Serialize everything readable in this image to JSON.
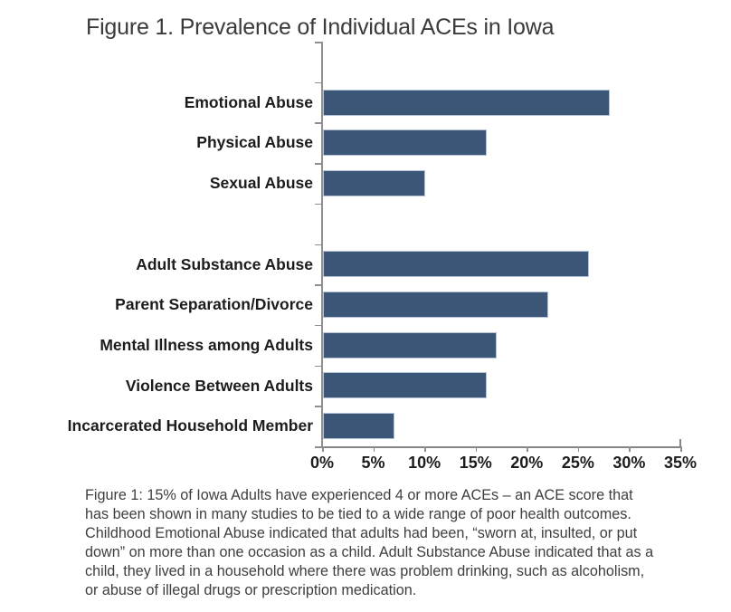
{
  "title": {
    "text": "Figure 1. Prevalence of Individual ACEs in Iowa"
  },
  "chart_data": {
    "type": "bar",
    "orientation": "horizontal",
    "title": "Figure 1. Prevalence of Individual ACEs in Iowa",
    "categories": [
      "",
      "Emotional Abuse",
      "Physical Abuse",
      "Sexual Abuse",
      "",
      "Adult Substance Abuse",
      "Parent Separation/Divorce",
      "Mental Illness among Adults",
      "Violence Between Adults",
      "Incarcerated Household Member"
    ],
    "values": [
      null,
      28,
      16,
      10,
      null,
      26,
      22,
      17,
      16,
      7
    ],
    "unit": "%",
    "xlim": [
      0,
      35
    ],
    "x_tick_labels": [
      "0%",
      "5%",
      "10%",
      "15%",
      "20%",
      "25%",
      "30%",
      "35%"
    ],
    "grid": false,
    "legend": "none",
    "colors": {
      "bar_fill": "#3b5677",
      "bar_border": "#b7c3d6",
      "axis": "#8f8f8f",
      "text": "#1c1c1c"
    }
  },
  "caption": {
    "lines": [
      "Figure 1: 15% of Iowa Adults have experienced 4 or more ACEs – an ACE score that",
      "has been shown in many studies to be tied to a wide range of poor health outcomes.",
      "Childhood Emotional Abuse indicated that adults had been, “sworn at, insulted, or put",
      "down” on more than one occasion as a child. Adult Substance Abuse indicated that as a",
      "child, they lived in a household where there was problem drinking, such as alcoholism,",
      "or abuse of illegal drugs or prescription medication."
    ]
  }
}
